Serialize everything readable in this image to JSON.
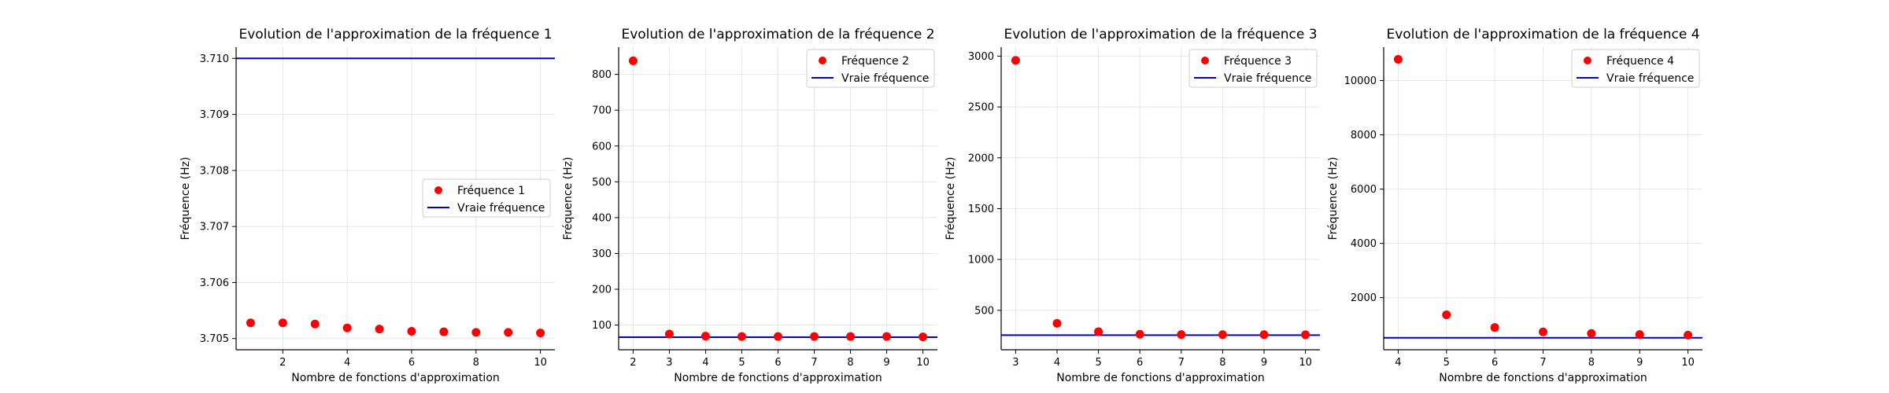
{
  "chart_data": [
    {
      "type": "scatter",
      "title": "Evolution de l'approximation de la fréquence 1",
      "xlabel": "Nombre de fonctions d'approximation",
      "ylabel": "Fréquence (Hz)",
      "xlim": [
        0.55,
        10.45
      ],
      "ylim": [
        3.7048,
        3.7102
      ],
      "xticks": [
        2,
        4,
        6,
        8,
        10
      ],
      "yticks": [
        3.705,
        3.706,
        3.707,
        3.708,
        3.709,
        3.71
      ],
      "ytick_labels": [
        "3.705",
        "3.706",
        "3.707",
        "3.708",
        "3.709",
        "3.710"
      ],
      "grid": true,
      "legend_position": "center-right",
      "series": [
        {
          "name": "Fréquence 1",
          "kind": "points",
          "color": "#ff0000",
          "x": [
            1,
            2,
            3,
            4,
            5,
            6,
            7,
            8,
            9,
            10
          ],
          "y": [
            3.70528,
            3.70528,
            3.70526,
            3.70519,
            3.70517,
            3.70513,
            3.70512,
            3.70511,
            3.70511,
            3.7051
          ]
        },
        {
          "name": "Vraie fréquence",
          "kind": "hline",
          "color": "#0000cc",
          "y": 3.71
        }
      ]
    },
    {
      "type": "scatter",
      "title": "Evolution de l'approximation de la fréquence 2",
      "xlabel": "Nombre de fonctions d'approximation",
      "ylabel": "Fréquence (Hz)",
      "xlim": [
        1.6,
        10.4
      ],
      "ylim": [
        31,
        876
      ],
      "xticks": [
        2,
        3,
        4,
        5,
        6,
        7,
        8,
        9,
        10
      ],
      "yticks": [
        100,
        200,
        300,
        400,
        500,
        600,
        700,
        800
      ],
      "ytick_labels": [
        "100",
        "200",
        "300",
        "400",
        "500",
        "600",
        "700",
        "800"
      ],
      "grid": true,
      "legend_position": "top-right",
      "series": [
        {
          "name": "Fréquence 2",
          "kind": "points",
          "color": "#ff0000",
          "x": [
            2,
            3,
            4,
            5,
            6,
            7,
            8,
            9,
            10
          ],
          "y": [
            838,
            75,
            69,
            68,
            68,
            68,
            68,
            68,
            67
          ]
        },
        {
          "name": "Vraie fréquence",
          "kind": "hline",
          "color": "#0000cc",
          "y": 66
        }
      ]
    },
    {
      "type": "scatter",
      "title": "Evolution de l'approximation de la fréquence 3",
      "xlabel": "Nombre de fonctions d'approximation",
      "ylabel": "Fréquence (Hz)",
      "xlim": [
        2.65,
        10.35
      ],
      "ylim": [
        112,
        3088
      ],
      "xticks": [
        3,
        4,
        5,
        6,
        7,
        8,
        9,
        10
      ],
      "yticks": [
        500,
        1000,
        1500,
        2000,
        2500,
        3000
      ],
      "ytick_labels": [
        "500",
        "1000",
        "1500",
        "2000",
        "2500",
        "3000"
      ],
      "grid": true,
      "legend_position": "top-right",
      "series": [
        {
          "name": "Fréquence 3",
          "kind": "points",
          "color": "#ff0000",
          "x": [
            3,
            4,
            5,
            6,
            7,
            8,
            9,
            10
          ],
          "y": [
            2958,
            372,
            290,
            265,
            262,
            261,
            261,
            260
          ]
        },
        {
          "name": "Vraie fréquence",
          "kind": "hline",
          "color": "#0000cc",
          "y": 256
        }
      ]
    },
    {
      "type": "scatter",
      "title": "Evolution de l'approximation de la fréquence 4",
      "xlabel": "Nombre de fonctions d'approximation",
      "ylabel": "Fréquence (Hz)",
      "xlim": [
        3.7,
        10.3
      ],
      "ylim": [
        80,
        11230
      ],
      "xticks": [
        4,
        5,
        6,
        7,
        8,
        9,
        10
      ],
      "yticks": [
        2000,
        4000,
        6000,
        8000,
        10000
      ],
      "ytick_labels": [
        "2000",
        "4000",
        "6000",
        "8000",
        "10000"
      ],
      "grid": true,
      "legend_position": "top-right",
      "series": [
        {
          "name": "Fréquence 4",
          "kind": "points",
          "color": "#ff0000",
          "x": [
            4,
            5,
            6,
            7,
            8,
            9,
            10
          ],
          "y": [
            10780,
            1370,
            900,
            740,
            680,
            640,
            620
          ]
        },
        {
          "name": "Vraie fréquence",
          "kind": "hline",
          "color": "#0000cc",
          "y": 520
        }
      ]
    }
  ]
}
